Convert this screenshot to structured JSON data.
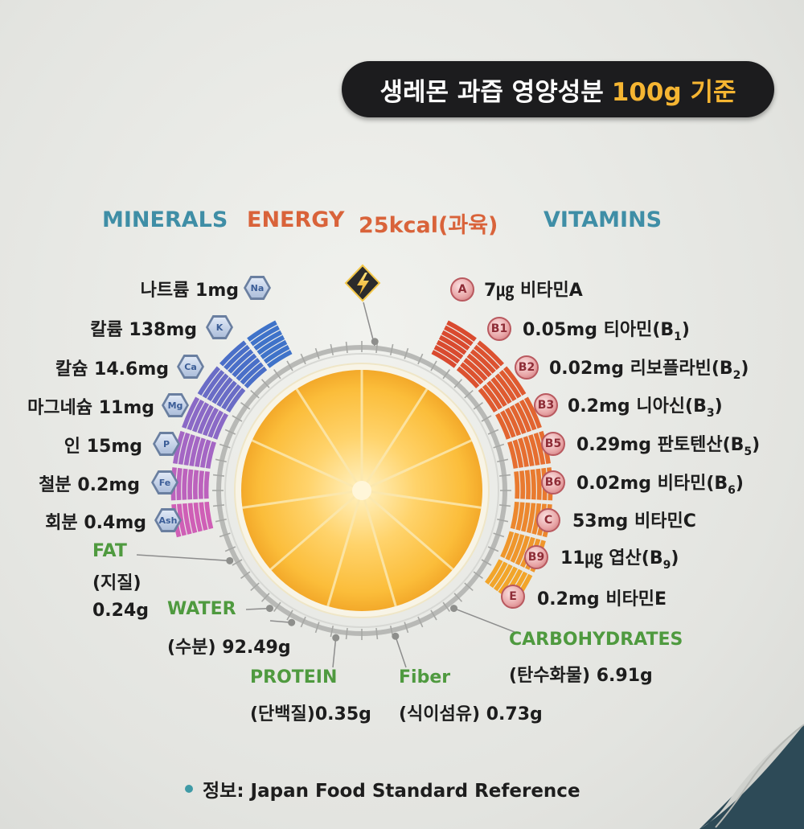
{
  "title": {
    "main": "생레몬 과즙 영양성분",
    "basis": "100g 기준"
  },
  "headers": {
    "minerals": "MINERALS",
    "energy_label": "ENERGY",
    "energy_value": "25kcal(과육)",
    "vitamins": "VITAMINS"
  },
  "minerals": [
    {
      "name": "나트륨",
      "amount": "1mg",
      "symbol": "Na",
      "color": "#3f73c9"
    },
    {
      "name": "칼륨",
      "amount": "138mg",
      "symbol": "K",
      "color": "#4a6fc8"
    },
    {
      "name": "칼슘",
      "amount": "14.6mg",
      "symbol": "Ca",
      "color": "#6a6cc6"
    },
    {
      "name": "마그네슘",
      "amount": "11mg",
      "symbol": "Mg",
      "color": "#8a69c6"
    },
    {
      "name": "인",
      "amount": "15mg",
      "symbol": "P",
      "color": "#a466c4"
    },
    {
      "name": "철분",
      "amount": "0.2mg",
      "symbol": "Fe",
      "color": "#bc62bd"
    },
    {
      "name": "회분",
      "amount": "0.4mg",
      "symbol": "Ash",
      "color": "#cf5fb6"
    }
  ],
  "vitamins": [
    {
      "badge": "A",
      "amount": "7㎍",
      "name": "비타민A",
      "color": "#d94a2f"
    },
    {
      "badge": "B1",
      "amount": "0.05mg",
      "name": "티아민(B",
      "sub": "1",
      "close": ")",
      "color": "#dc5230"
    },
    {
      "badge": "B2",
      "amount": "0.02mg",
      "name": "리보플라빈(B",
      "sub": "2",
      "close": ")",
      "color": "#df5a30"
    },
    {
      "badge": "B3",
      "amount": "0.2mg",
      "name": "니아신(B",
      "sub": "3",
      "close": ")",
      "color": "#e26430"
    },
    {
      "badge": "B5",
      "amount": "0.29mg",
      "name": "판토텐산(B",
      "sub": "5",
      "close": ")",
      "color": "#e66e30"
    },
    {
      "badge": "B6",
      "amount": "0.02mg",
      "name": "비타민(B",
      "sub": "6",
      "close": ")",
      "color": "#e97a2f"
    },
    {
      "badge": "C",
      "amount": "53mg",
      "name": "비타민C",
      "color": "#ec872e"
    },
    {
      "badge": "B9",
      "amount": "11㎍",
      "name": "엽산(B",
      "sub": "9",
      "close": ")",
      "color": "#ef962c"
    },
    {
      "badge": "E",
      "amount": "0.2mg",
      "name": "비타민E",
      "color": "#f2a52a"
    }
  ],
  "macros": {
    "fat": {
      "label": "FAT",
      "kr": "(지질)",
      "value": "0.24g"
    },
    "water": {
      "label": "WATER",
      "kr": "(수분)",
      "value": "92.49g"
    },
    "protein": {
      "label": "PROTEIN",
      "kr": "(단백질)",
      "value": "0.35g"
    },
    "fiber": {
      "label": "Fiber",
      "kr": "(식이섬유)",
      "value": "0.73g"
    },
    "carbs": {
      "label": "CARBOHYDRATES",
      "kr": "(탄수화물)",
      "value": "6.91g"
    }
  },
  "energy_icon": "lightning-bolt-icon",
  "source": "정보: Japan Food Standard Reference",
  "colors": {
    "accent_green": "#4f9a3f",
    "accent_teal": "#3f8ea6",
    "accent_orange": "#d9633a",
    "title_gold": "#f5b532"
  }
}
